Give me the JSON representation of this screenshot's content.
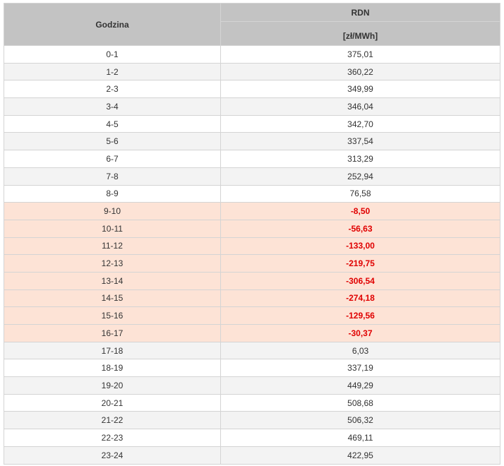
{
  "table": {
    "hour_header": "Godzina",
    "price_header": "RDN",
    "unit_header": "[zł/MWh]",
    "rows": [
      {
        "hour": "0-1",
        "price": "375,01",
        "negative": false
      },
      {
        "hour": "1-2",
        "price": "360,22",
        "negative": false
      },
      {
        "hour": "2-3",
        "price": "349,99",
        "negative": false
      },
      {
        "hour": "3-4",
        "price": "346,04",
        "negative": false
      },
      {
        "hour": "4-5",
        "price": "342,70",
        "negative": false
      },
      {
        "hour": "5-6",
        "price": "337,54",
        "negative": false
      },
      {
        "hour": "6-7",
        "price": "313,29",
        "negative": false
      },
      {
        "hour": "7-8",
        "price": "252,94",
        "negative": false
      },
      {
        "hour": "8-9",
        "price": "76,58",
        "negative": false
      },
      {
        "hour": "9-10",
        "price": "-8,50",
        "negative": true
      },
      {
        "hour": "10-11",
        "price": "-56,63",
        "negative": true
      },
      {
        "hour": "11-12",
        "price": "-133,00",
        "negative": true
      },
      {
        "hour": "12-13",
        "price": "-219,75",
        "negative": true
      },
      {
        "hour": "13-14",
        "price": "-306,54",
        "negative": true
      },
      {
        "hour": "14-15",
        "price": "-274,18",
        "negative": true
      },
      {
        "hour": "15-16",
        "price": "-129,56",
        "negative": true
      },
      {
        "hour": "16-17",
        "price": "-30,37",
        "negative": true
      },
      {
        "hour": "17-18",
        "price": "6,03",
        "negative": false
      },
      {
        "hour": "18-19",
        "price": "337,19",
        "negative": false
      },
      {
        "hour": "19-20",
        "price": "449,29",
        "negative": false
      },
      {
        "hour": "20-21",
        "price": "508,68",
        "negative": false
      },
      {
        "hour": "21-22",
        "price": "506,32",
        "negative": false
      },
      {
        "hour": "22-23",
        "price": "469,11",
        "negative": false
      },
      {
        "hour": "23-24",
        "price": "422,95",
        "negative": false
      }
    ]
  },
  "colors": {
    "header_bg": "#c3c3c3",
    "row_alt_bg": "#f3f3f3",
    "negative_row_bg": "#fde3d6",
    "negative_text": "#e00000"
  }
}
